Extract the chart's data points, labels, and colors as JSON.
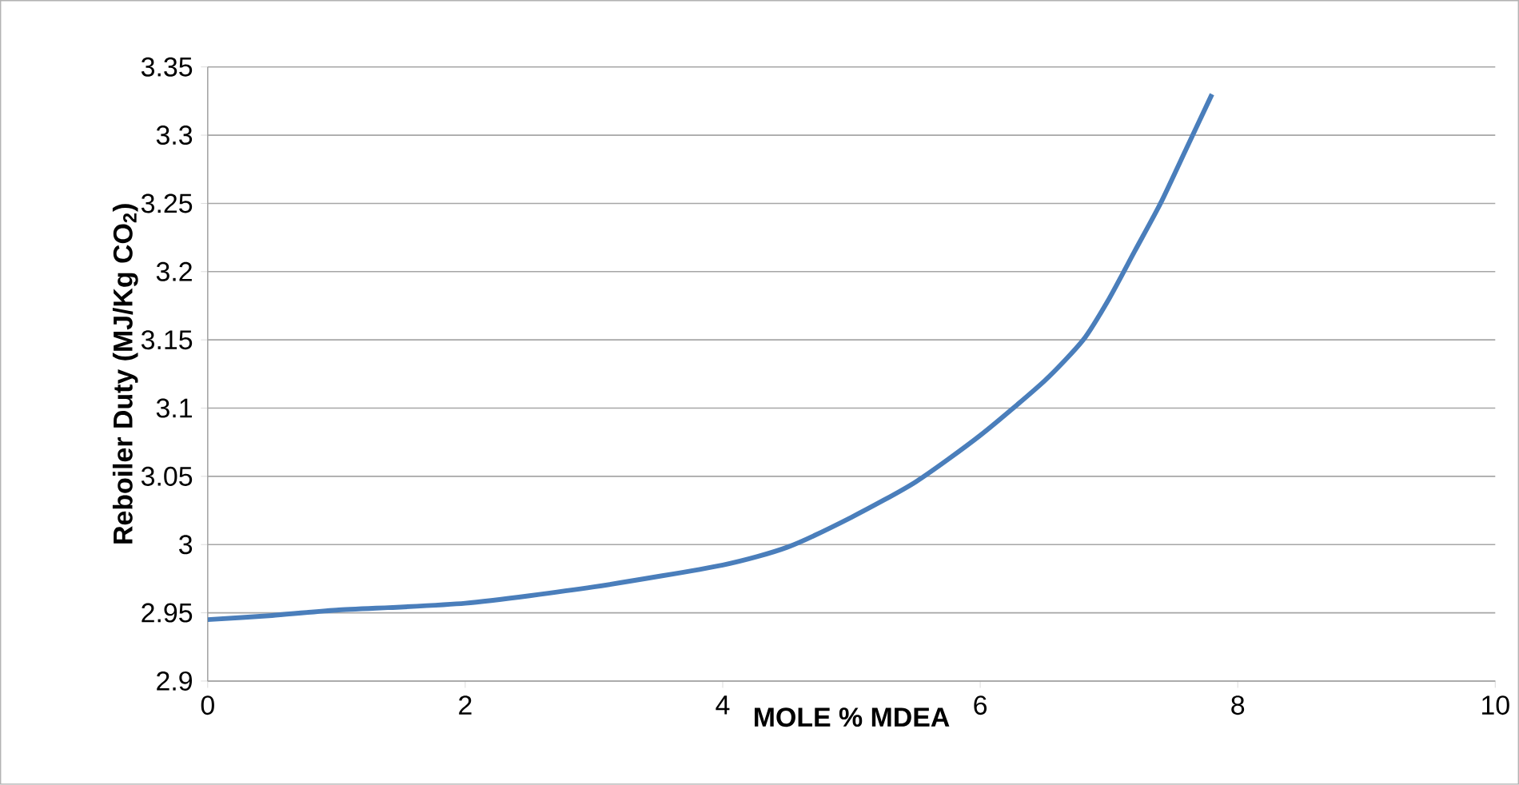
{
  "chart_data": {
    "type": "line",
    "xlabel": "MOLE % MDEA",
    "ylabel": "**Reboiler Duty (MJ/Kg CO$_{2}$)**",
    "x": [
      0,
      0.5,
      1,
      2,
      3,
      4,
      4.5,
      5,
      5.5,
      6,
      6.5,
      6.8,
      7,
      7.2,
      7.4,
      7.6,
      7.8
    ],
    "series": [
      {
        "color": "#4a7ebb",
        "values": [
          2.945,
          2.948,
          2.952,
          2.957,
          2.969,
          2.985,
          2.998,
          3.02,
          3.046,
          3.08,
          3.12,
          3.15,
          3.18,
          3.215,
          3.25,
          3.29,
          3.33
        ]
      }
    ],
    "xlim": [
      0,
      10
    ],
    "xticks": [
      0,
      2,
      4,
      6,
      8,
      10
    ],
    "ylim": [
      2.9,
      3.35
    ],
    "yticks": [
      2.9,
      2.95,
      3,
      3.05,
      3.1,
      3.15,
      3.2,
      3.25,
      3.3,
      3.35
    ],
    "grid": "y",
    "line_style": "solid"
  }
}
